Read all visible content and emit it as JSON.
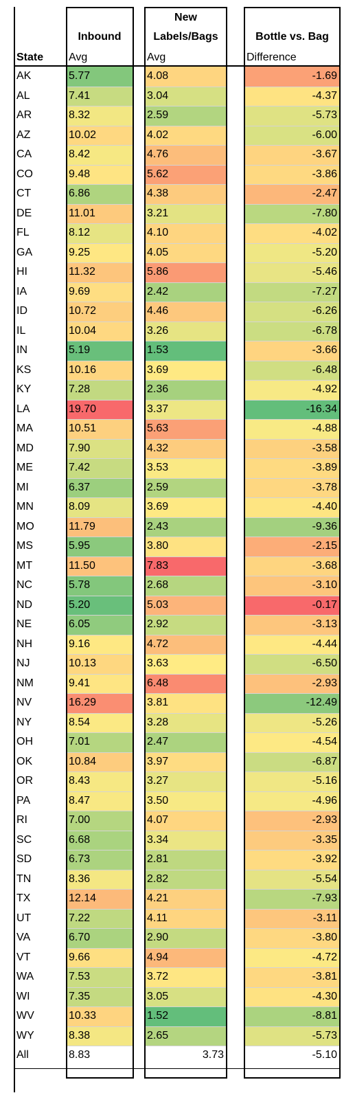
{
  "headers": {
    "state": "State",
    "inbound_title": "Inbound",
    "inbound_sub": "Avg",
    "labels_title_1": "New",
    "labels_title_2": "Labels/Bags",
    "labels_sub": "Avg",
    "diff_title": "Bottle vs. Bag",
    "diff_sub": "Difference"
  },
  "rows": [
    {
      "state": "AK",
      "inbound": "5.77",
      "labels": "4.08",
      "diff": "-1.69",
      "c_in": "#83c77c",
      "c_lb": "#fed580",
      "c_df": "#fba176"
    },
    {
      "state": "AL",
      "inbound": "7.41",
      "labels": "3.04",
      "diff": "-4.37",
      "c_in": "#c7db81",
      "c_lb": "#d6e083",
      "c_df": "#fee382"
    },
    {
      "state": "AR",
      "inbound": "8.32",
      "labels": "2.59",
      "diff": "-5.73",
      "c_in": "#f2e783",
      "c_lb": "#b2d580",
      "c_df": "#dfe283"
    },
    {
      "state": "AZ",
      "inbound": "10.02",
      "labels": "4.02",
      "diff": "-6.00",
      "c_in": "#fed881",
      "c_lb": "#fed981",
      "c_df": "#d9e183"
    },
    {
      "state": "CA",
      "inbound": "8.42",
      "labels": "4.76",
      "diff": "-3.67",
      "c_in": "#f6e883",
      "c_lb": "#fcbd7b",
      "c_df": "#fed480"
    },
    {
      "state": "CO",
      "inbound": "9.48",
      "labels": "5.62",
      "diff": "-3.86",
      "c_in": "#fee483",
      "c_lb": "#fba176",
      "c_df": "#fed981"
    },
    {
      "state": "CT",
      "inbound": "6.86",
      "labels": "4.38",
      "diff": "-2.47",
      "c_in": "#afd47f",
      "c_lb": "#fdcb7e",
      "c_df": "#fcb77a"
    },
    {
      "state": "DE",
      "inbound": "11.01",
      "labels": "3.21",
      "diff": "-7.80",
      "c_in": "#fdca7d",
      "c_lb": "#e3e383",
      "c_df": "#bad880"
    },
    {
      "state": "FL",
      "inbound": "8.12",
      "labels": "4.10",
      "diff": "-4.02",
      "c_in": "#e6e483",
      "c_lb": "#fed580",
      "c_df": "#fedd82"
    },
    {
      "state": "GA",
      "inbound": "9.25",
      "labels": "4.05",
      "diff": "-5.20",
      "c_in": "#fee783",
      "c_lb": "#fed881",
      "c_df": "#efe784"
    },
    {
      "state": "HI",
      "inbound": "11.32",
      "labels": "5.86",
      "diff": "-5.46",
      "c_in": "#fdc57c",
      "c_lb": "#fa9a74",
      "c_df": "#e8e484"
    },
    {
      "state": "IA",
      "inbound": "9.69",
      "labels": "2.42",
      "diff": "-7.27",
      "c_in": "#fede82",
      "c_lb": "#a9d27f",
      "c_df": "#c2da81"
    },
    {
      "state": "ID",
      "inbound": "10.72",
      "labels": "4.46",
      "diff": "-6.26",
      "c_in": "#fdce7e",
      "c_lb": "#fdc87d",
      "c_df": "#d5e082"
    },
    {
      "state": "IL",
      "inbound": "10.04",
      "labels": "3.26",
      "diff": "-6.78",
      "c_in": "#fed881",
      "c_lb": "#e6e483",
      "c_df": "#cbdd82"
    },
    {
      "state": "IN",
      "inbound": "5.19",
      "labels": "1.53",
      "diff": "-3.66",
      "c_in": "#69bf7b",
      "c_lb": "#63be7b",
      "c_df": "#fed480"
    },
    {
      "state": "KS",
      "inbound": "10.16",
      "labels": "3.69",
      "diff": "-6.48",
      "c_in": "#fed680",
      "c_lb": "#fee983",
      "c_df": "#d0de82"
    },
    {
      "state": "KY",
      "inbound": "7.28",
      "labels": "2.36",
      "diff": "-4.92",
      "c_in": "#c2d981",
      "c_lb": "#a6d17e",
      "c_df": "#f7e985"
    },
    {
      "state": "LA",
      "inbound": "19.70",
      "labels": "3.37",
      "diff": "-16.34",
      "c_in": "#f8696b",
      "c_lb": "#ede684",
      "c_df": "#63be7b"
    },
    {
      "state": "MA",
      "inbound": "10.51",
      "labels": "5.63",
      "diff": "-4.88",
      "c_in": "#fdd07f",
      "c_lb": "#fba076",
      "c_df": "#f8ea85"
    },
    {
      "state": "MD",
      "inbound": "7.90",
      "labels": "4.32",
      "diff": "-3.58",
      "c_in": "#dbe183",
      "c_lb": "#fdcc7e",
      "c_df": "#fdd17f"
    },
    {
      "state": "ME",
      "inbound": "7.42",
      "labels": "3.53",
      "diff": "-3.89",
      "c_in": "#c7db81",
      "c_lb": "#fae984",
      "c_df": "#feda81"
    },
    {
      "state": "MI",
      "inbound": "6.37",
      "labels": "2.59",
      "diff": "-3.78",
      "c_in": "#9ccf7e",
      "c_lb": "#b2d580",
      "c_df": "#fed781"
    },
    {
      "state": "MN",
      "inbound": "8.09",
      "labels": "3.69",
      "diff": "-4.40",
      "c_in": "#e5e483",
      "c_lb": "#fee983",
      "c_df": "#fee582"
    },
    {
      "state": "MO",
      "inbound": "11.79",
      "labels": "2.43",
      "diff": "-9.36",
      "c_in": "#fcbf7b",
      "c_lb": "#a9d27f",
      "c_df": "#a3d07f"
    },
    {
      "state": "MS",
      "inbound": "5.95",
      "labels": "3.80",
      "diff": "-2.15",
      "c_in": "#8bc97d",
      "c_lb": "#fee282",
      "c_df": "#fcad78"
    },
    {
      "state": "MT",
      "inbound": "11.50",
      "labels": "7.83",
      "diff": "-3.68",
      "c_in": "#fdc27c",
      "c_lb": "#f8696b",
      "c_df": "#fed580"
    },
    {
      "state": "NC",
      "inbound": "5.78",
      "labels": "2.68",
      "diff": "-3.10",
      "c_in": "#83c77c",
      "c_lb": "#b6d680",
      "c_df": "#fdc57c"
    },
    {
      "state": "ND",
      "inbound": "5.20",
      "labels": "5.03",
      "diff": "-0.17",
      "c_in": "#69bf7b",
      "c_lb": "#fcb47a",
      "c_df": "#f8696b"
    },
    {
      "state": "NE",
      "inbound": "6.05",
      "labels": "2.92",
      "diff": "-3.13",
      "c_in": "#90cb7e",
      "c_lb": "#c6db81",
      "c_df": "#fdc67d"
    },
    {
      "state": "NH",
      "inbound": "9.16",
      "labels": "4.72",
      "diff": "-4.44",
      "c_in": "#fee883",
      "c_lb": "#fcbe7b",
      "c_df": "#fee883"
    },
    {
      "state": "NJ",
      "inbound": "10.13",
      "labels": "3.63",
      "diff": "-6.50",
      "c_in": "#fed780",
      "c_lb": "#ffeb84",
      "c_df": "#d0de82"
    },
    {
      "state": "NM",
      "inbound": "9.41",
      "labels": "6.48",
      "diff": "-2.93",
      "c_in": "#fee583",
      "c_lb": "#fa8b71",
      "c_df": "#fdc17c"
    },
    {
      "state": "NV",
      "inbound": "16.29",
      "labels": "3.81",
      "diff": "-12.49",
      "c_in": "#fa8e72",
      "c_lb": "#fee282",
      "c_df": "#8cc97d"
    },
    {
      "state": "NY",
      "inbound": "8.54",
      "labels": "3.28",
      "diff": "-5.26",
      "c_in": "#fbe984",
      "c_lb": "#e7e483",
      "c_df": "#eee684"
    },
    {
      "state": "OH",
      "inbound": "7.01",
      "labels": "2.47",
      "diff": "-4.54",
      "c_in": "#b5d680",
      "c_lb": "#acd37f",
      "c_df": "#fde984"
    },
    {
      "state": "OK",
      "inbound": "10.84",
      "labels": "3.97",
      "diff": "-6.87",
      "c_in": "#fdcc7e",
      "c_lb": "#fedc82",
      "c_df": "#cadc82"
    },
    {
      "state": "OR",
      "inbound": "8.43",
      "labels": "3.27",
      "diff": "-5.16",
      "c_in": "#f6e883",
      "c_lb": "#e7e483",
      "c_df": "#f0e784"
    },
    {
      "state": "PA",
      "inbound": "8.47",
      "labels": "3.50",
      "diff": "-4.96",
      "c_in": "#f8e883",
      "c_lb": "#f7e984",
      "c_df": "#f6e985"
    },
    {
      "state": "RI",
      "inbound": "7.00",
      "labels": "4.07",
      "diff": "-2.93",
      "c_in": "#b5d680",
      "c_lb": "#fed680",
      "c_df": "#fdc17c"
    },
    {
      "state": "SC",
      "inbound": "6.68",
      "labels": "3.34",
      "diff": "-3.35",
      "c_in": "#aad37f",
      "c_lb": "#ebe584",
      "c_df": "#fdcb7e"
    },
    {
      "state": "SD",
      "inbound": "6.73",
      "labels": "2.81",
      "diff": "-3.92",
      "c_in": "#acd37f",
      "c_lb": "#bed880",
      "c_df": "#fedb81"
    },
    {
      "state": "TN",
      "inbound": "8.36",
      "labels": "2.82",
      "diff": "-5.54",
      "c_in": "#f4e783",
      "c_lb": "#bfd981",
      "c_df": "#e5e384"
    },
    {
      "state": "TX",
      "inbound": "12.14",
      "labels": "4.21",
      "diff": "-7.93",
      "c_in": "#fcba7a",
      "c_lb": "#fdd07f",
      "c_df": "#b8d780"
    },
    {
      "state": "UT",
      "inbound": "7.22",
      "labels": "4.11",
      "diff": "-3.11",
      "c_in": "#bfd981",
      "c_lb": "#fed580",
      "c_df": "#fdc67d"
    },
    {
      "state": "VA",
      "inbound": "6.70",
      "labels": "2.90",
      "diff": "-3.80",
      "c_in": "#abd37f",
      "c_lb": "#c4da81",
      "c_df": "#fed881"
    },
    {
      "state": "VT",
      "inbound": "9.66",
      "labels": "4.94",
      "diff": "-4.72",
      "c_in": "#fedf82",
      "c_lb": "#fcb87a",
      "c_df": "#fce984"
    },
    {
      "state": "WA",
      "inbound": "7.53",
      "labels": "3.72",
      "diff": "-3.81",
      "c_in": "#cadc82",
      "c_lb": "#fee683",
      "c_df": "#fed881"
    },
    {
      "state": "WI",
      "inbound": "7.35",
      "labels": "3.05",
      "diff": "-4.30",
      "c_in": "#c4da81",
      "c_lb": "#d7e083",
      "c_df": "#fee282"
    },
    {
      "state": "WV",
      "inbound": "10.33",
      "labels": "1.52",
      "diff": "-8.81",
      "c_in": "#fed480",
      "c_lb": "#63be7b",
      "c_df": "#abd37f"
    },
    {
      "state": "WY",
      "inbound": "8.38",
      "labels": "2.65",
      "diff": "-5.73",
      "c_in": "#f4e783",
      "c_lb": "#b4d580",
      "c_df": "#dfe283"
    },
    {
      "state": "All",
      "inbound": "8.83",
      "labels": "3.73",
      "diff": "-5.10",
      "c_in": "#ffffff",
      "c_lb": "#ffffff",
      "c_df": "#ffffff"
    }
  ]
}
